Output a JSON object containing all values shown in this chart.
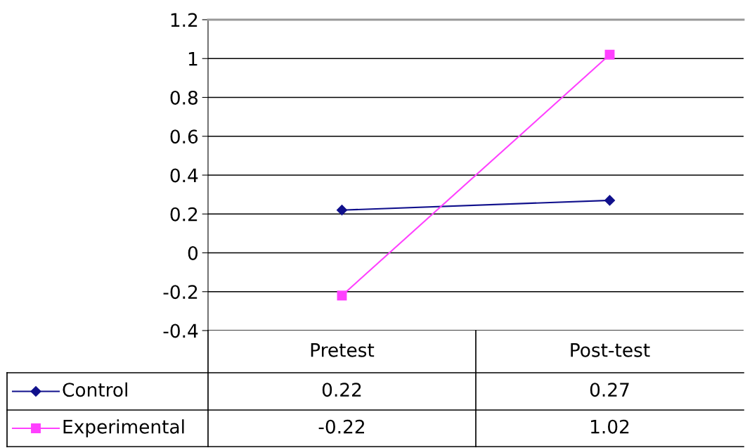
{
  "chart_data": {
    "type": "line",
    "categories": [
      "Pretest",
      "Post-test"
    ],
    "series": [
      {
        "name": "Control",
        "color": "#10108c",
        "values": [
          0.22,
          0.27
        ],
        "marker": "diamond"
      },
      {
        "name": "Experimental",
        "color": "#ff40ff",
        "values": [
          -0.22,
          1.02
        ],
        "marker": "square"
      }
    ],
    "ylim": [
      -0.4,
      1.2
    ],
    "yticks": [
      -0.4,
      -0.2,
      0,
      0.2,
      0.4,
      0.6,
      0.8,
      1,
      1.2
    ],
    "grid": "y",
    "legend": "bottom",
    "data_labels": true,
    "line_style": "solid"
  }
}
